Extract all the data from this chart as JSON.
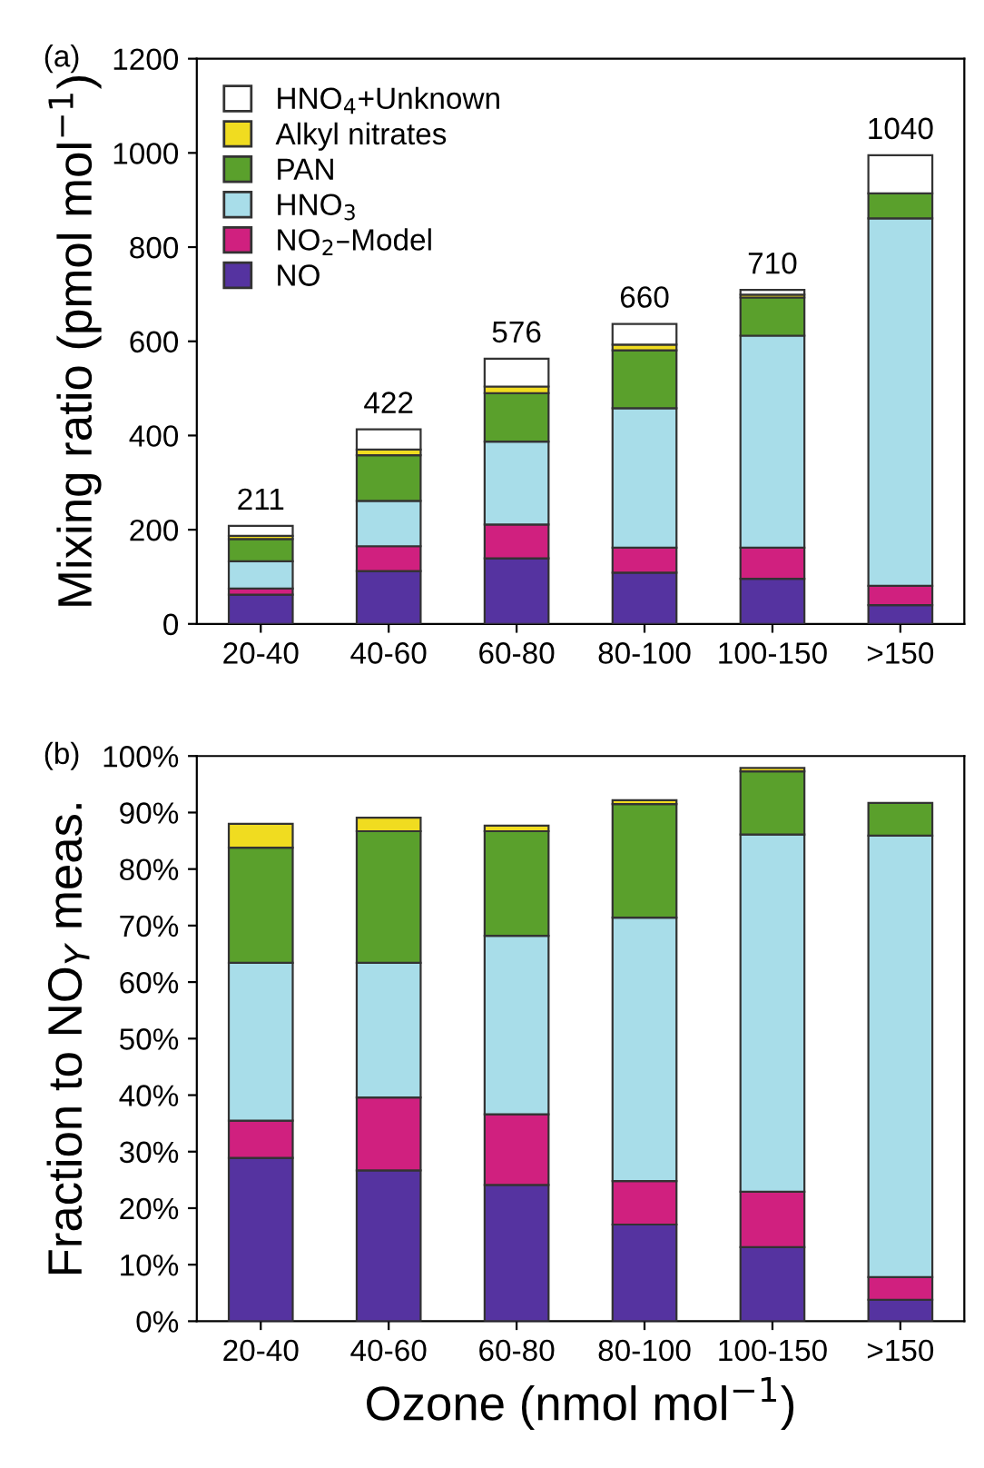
{
  "chart_data": [
    {
      "type": "bar",
      "stacked": true,
      "ylabel": "Mixing ratio (pmol mol$^{−1}$)",
      "annotations": [
        "(a)",
        {
          "text": "211",
          "x": "20-40",
          "y": 208
        },
        {
          "text": "422",
          "x": "40-60",
          "y": 413
        },
        {
          "text": "576",
          "x": "60-80",
          "y": 563
        },
        {
          "text": "660",
          "x": "80-100",
          "y": 637
        },
        {
          "text": "710",
          "x": "100-150",
          "y": 709
        },
        {
          "text": "1040",
          "x": ">150",
          "y": 995
        }
      ],
      "categories": [
        "20-40",
        "40-60",
        "60-80",
        "80-100",
        "100-150",
        ">150"
      ],
      "series": [
        {
          "name": "NO",
          "color": "#5533a0",
          "values": [
            62,
            112,
            139,
            109,
            96,
            40
          ]
        },
        {
          "name": "NO$_{2}$–Model",
          "color": "#d0207f",
          "values": [
            13,
            53,
            72,
            53,
            66,
            41
          ]
        },
        {
          "name": "HNO$_{3}$",
          "color": "#a8dde9",
          "values": [
            58,
            96,
            176,
            296,
            450,
            780
          ]
        },
        {
          "name": "PAN",
          "color": "#5aa02c",
          "values": [
            47,
            97,
            103,
            123,
            81,
            53
          ]
        },
        {
          "name": "Alkyl nitrates",
          "color": "#f0dc20",
          "values": [
            7,
            12,
            14,
            12,
            6,
            null
          ]
        },
        {
          "name": "HNO$_{4}$+Unknown",
          "color": "#ffffff",
          "values": [
            21,
            43,
            59,
            44,
            10,
            81
          ]
        }
      ],
      "ylim": [
        0,
        1200
      ],
      "yticks": [
        0,
        200,
        400,
        600,
        800,
        1000,
        1200
      ],
      "legend": "top left",
      "grid": false
    },
    {
      "type": "bar",
      "stacked": true,
      "ylabel": "Fraction to NO$_{Y}$ meas.",
      "xlabel": "Ozone (nmol mol$^{−1}$)",
      "annotations": [
        "(b)"
      ],
      "categories": [
        "20-40",
        "40-60",
        "60-80",
        "80-100",
        "100-150",
        ">150"
      ],
      "series": [
        {
          "color": "#5533a0",
          "values": [
            28.9,
            26.7,
            24.1,
            17.1,
            13.1,
            3.8
          ]
        },
        {
          "color": "#d0207f",
          "values": [
            6.6,
            12.9,
            12.5,
            7.7,
            9.8,
            4.0
          ]
        },
        {
          "color": "#a8dde9",
          "values": [
            27.9,
            23.8,
            31.6,
            46.6,
            63.2,
            78.1
          ]
        },
        {
          "color": "#5aa02c",
          "values": [
            20.4,
            23.3,
            18.5,
            20.1,
            11.2,
            5.8
          ]
        },
        {
          "color": "#f0dc20",
          "values": [
            4.2,
            2.4,
            1.0,
            0.7,
            0.6,
            null
          ]
        }
      ],
      "ylim": [
        0,
        100
      ],
      "yticks": [
        {
          "value": 0,
          "label": "0%"
        },
        {
          "value": 10,
          "label": "10%"
        },
        {
          "value": 20,
          "label": "20%"
        },
        {
          "value": 30,
          "label": "30%"
        },
        {
          "value": 40,
          "label": "40%"
        },
        {
          "value": 50,
          "label": "50%"
        },
        {
          "value": 60,
          "label": "60%"
        },
        {
          "value": 70,
          "label": "70%"
        },
        {
          "value": 80,
          "label": "80%"
        },
        {
          "value": 90,
          "label": "90%"
        },
        {
          "value": 100,
          "label": "100%"
        }
      ],
      "legend": false,
      "grid": false
    }
  ]
}
